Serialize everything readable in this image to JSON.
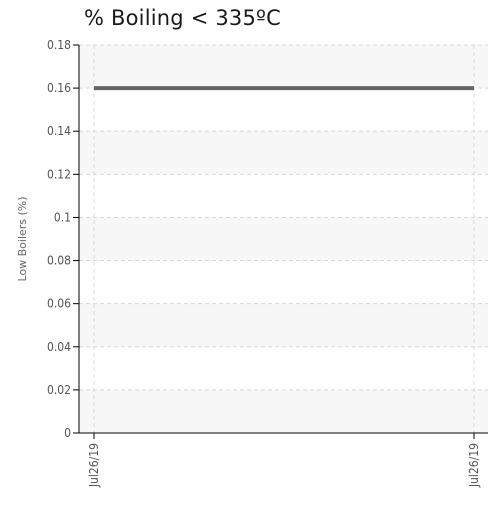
{
  "chart_data": {
    "type": "line",
    "title": "% Boiling < 335ºC",
    "xlabel": "",
    "ylabel": "Low Boilers (%)",
    "categories": [
      "Jul26/19",
      "Jul26/19"
    ],
    "series": [
      {
        "values": [
          0.16,
          0.16
        ],
        "color": "#666666"
      }
    ],
    "ylim": [
      0,
      0.18
    ],
    "yticks": [
      0,
      0.02,
      0.04,
      0.06,
      0.08,
      0.1,
      0.12,
      0.14,
      0.16,
      0.18
    ],
    "ytick_labels": [
      "0",
      "0.02",
      "0.04",
      "0.06",
      "0.08",
      "0.1",
      "0.12",
      "0.14",
      "0.16",
      "0.18"
    ],
    "grid": true,
    "band_color": "#f7f7f7",
    "grid_color": "#d8d8d8",
    "axis_color": "#000000"
  }
}
